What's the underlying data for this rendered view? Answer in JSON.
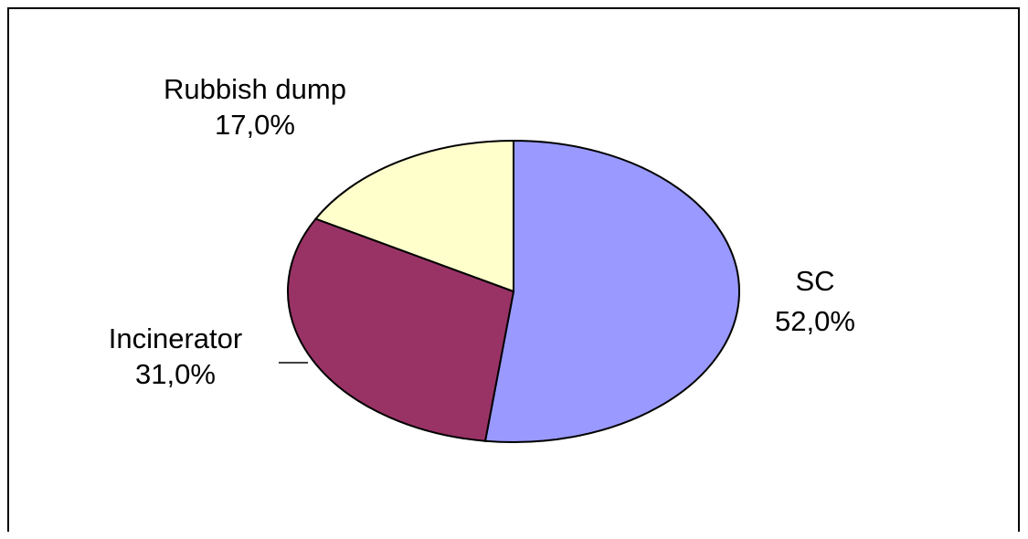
{
  "chart_data": {
    "type": "pie",
    "slices": [
      {
        "name": "SC",
        "value": 52.0,
        "label": "52,0%",
        "color": "#9999ff"
      },
      {
        "name": "Incinerator",
        "value": 31.0,
        "label": "31,0%",
        "color": "#993366"
      },
      {
        "name": "Rubbish dump",
        "value": 17.0,
        "label": "17,0%",
        "color": "#ffffcc"
      }
    ],
    "start_angle_deg": 0,
    "direction": "clockwise",
    "stroke_color": "#000000"
  }
}
